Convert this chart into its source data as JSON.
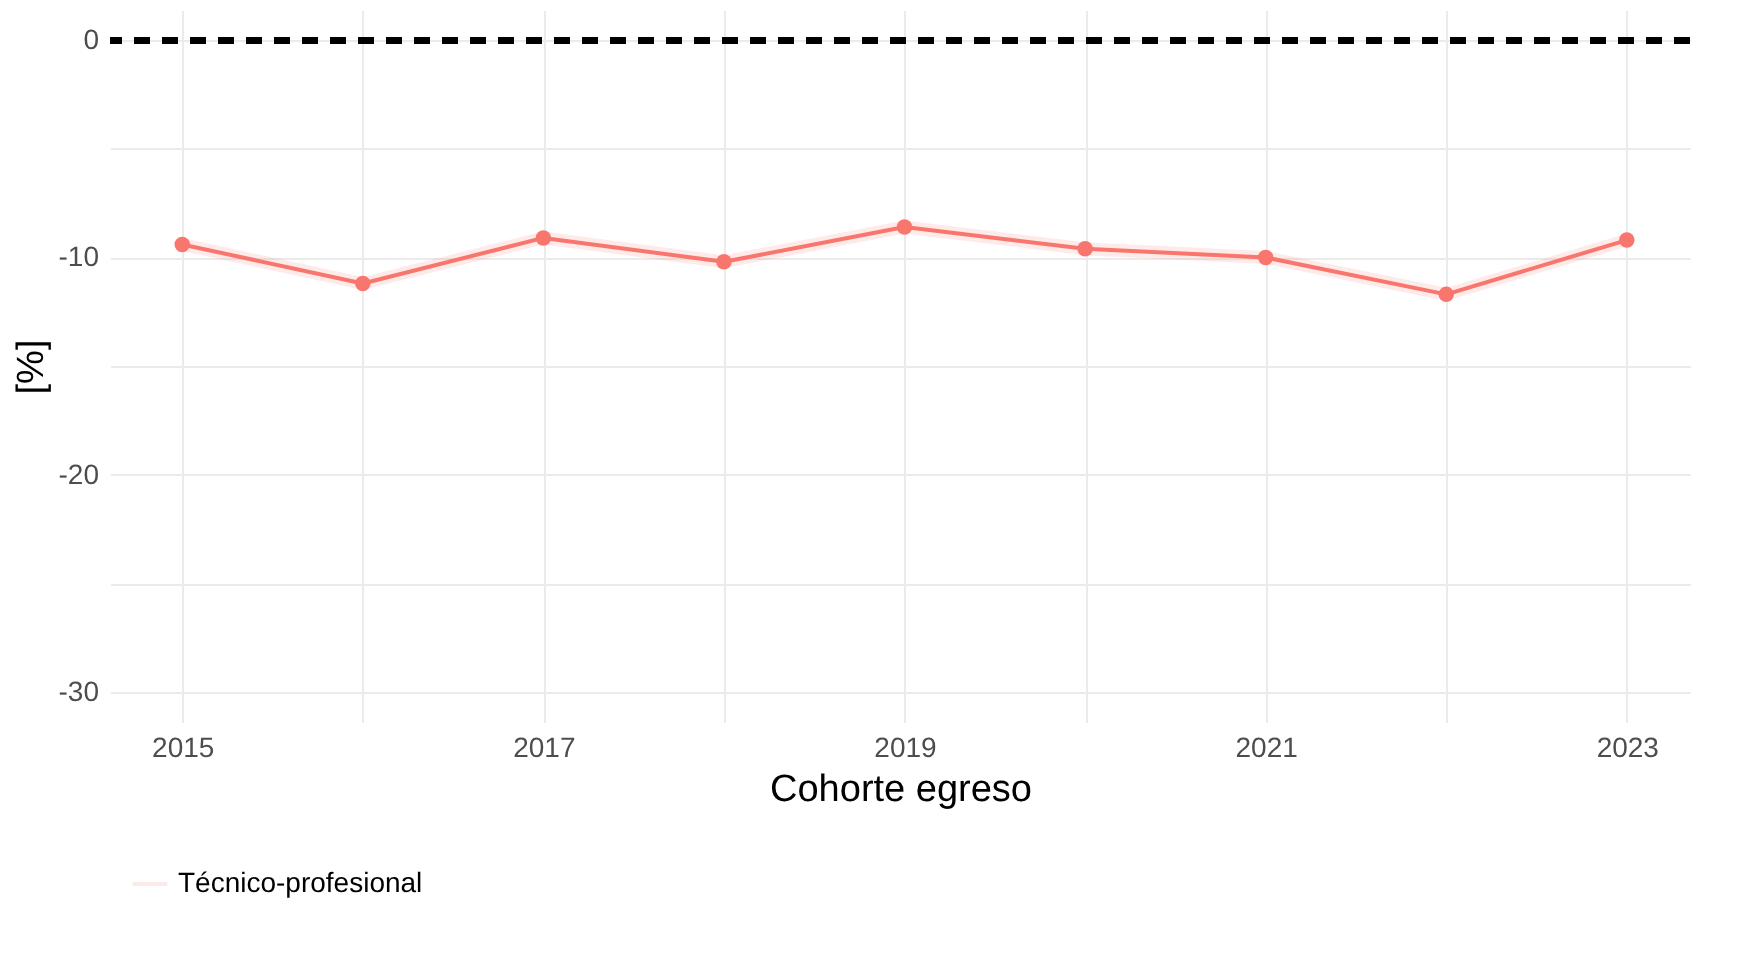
{
  "chart_data": {
    "type": "line",
    "xlabel": "Cohorte egreso",
    "ylabel": "[%]",
    "x": [
      2015,
      2016,
      2017,
      2018,
      2019,
      2020,
      2021,
      2022,
      2023
    ],
    "series": [
      {
        "name": "Técnico-profesional",
        "color": "#f8766d",
        "values": [
          -9.4,
          -11.2,
          -9.1,
          -10.2,
          -8.6,
          -9.6,
          -10.0,
          -11.7,
          -9.2
        ],
        "lower": [
          -9.7,
          -11.5,
          -9.4,
          -10.5,
          -8.9,
          -9.9,
          -10.3,
          -12.0,
          -9.5
        ],
        "upper": [
          -9.1,
          -10.9,
          -8.8,
          -9.9,
          -8.3,
          -9.3,
          -9.7,
          -11.4,
          -8.9
        ]
      }
    ],
    "xlim": [
      2014.6,
      2023.35
    ],
    "ylim": [
      -31.4,
      1.4
    ],
    "xticks": [
      2015,
      {
        "value": 2016,
        "label": null
      },
      2017,
      {
        "value": 2018,
        "label": null
      },
      2019,
      {
        "value": 2020,
        "label": null
      },
      2021,
      {
        "value": 2022,
        "label": null
      },
      2023
    ],
    "yticks": [
      {
        "value": -30,
        "label": "-30"
      },
      {
        "value": -25,
        "label": null
      },
      {
        "value": -20,
        "label": "-20"
      },
      {
        "value": -15,
        "label": null
      },
      {
        "value": -10,
        "label": "-10"
      },
      {
        "value": -5,
        "label": null
      },
      0
    ],
    "ref_lines": [
      {
        "axis": "y",
        "value": 0,
        "color": "#000000",
        "line_style": "dashed"
      }
    ],
    "grid": true,
    "legend": "bottom",
    "marker": "circle",
    "line_style": "solid"
  }
}
